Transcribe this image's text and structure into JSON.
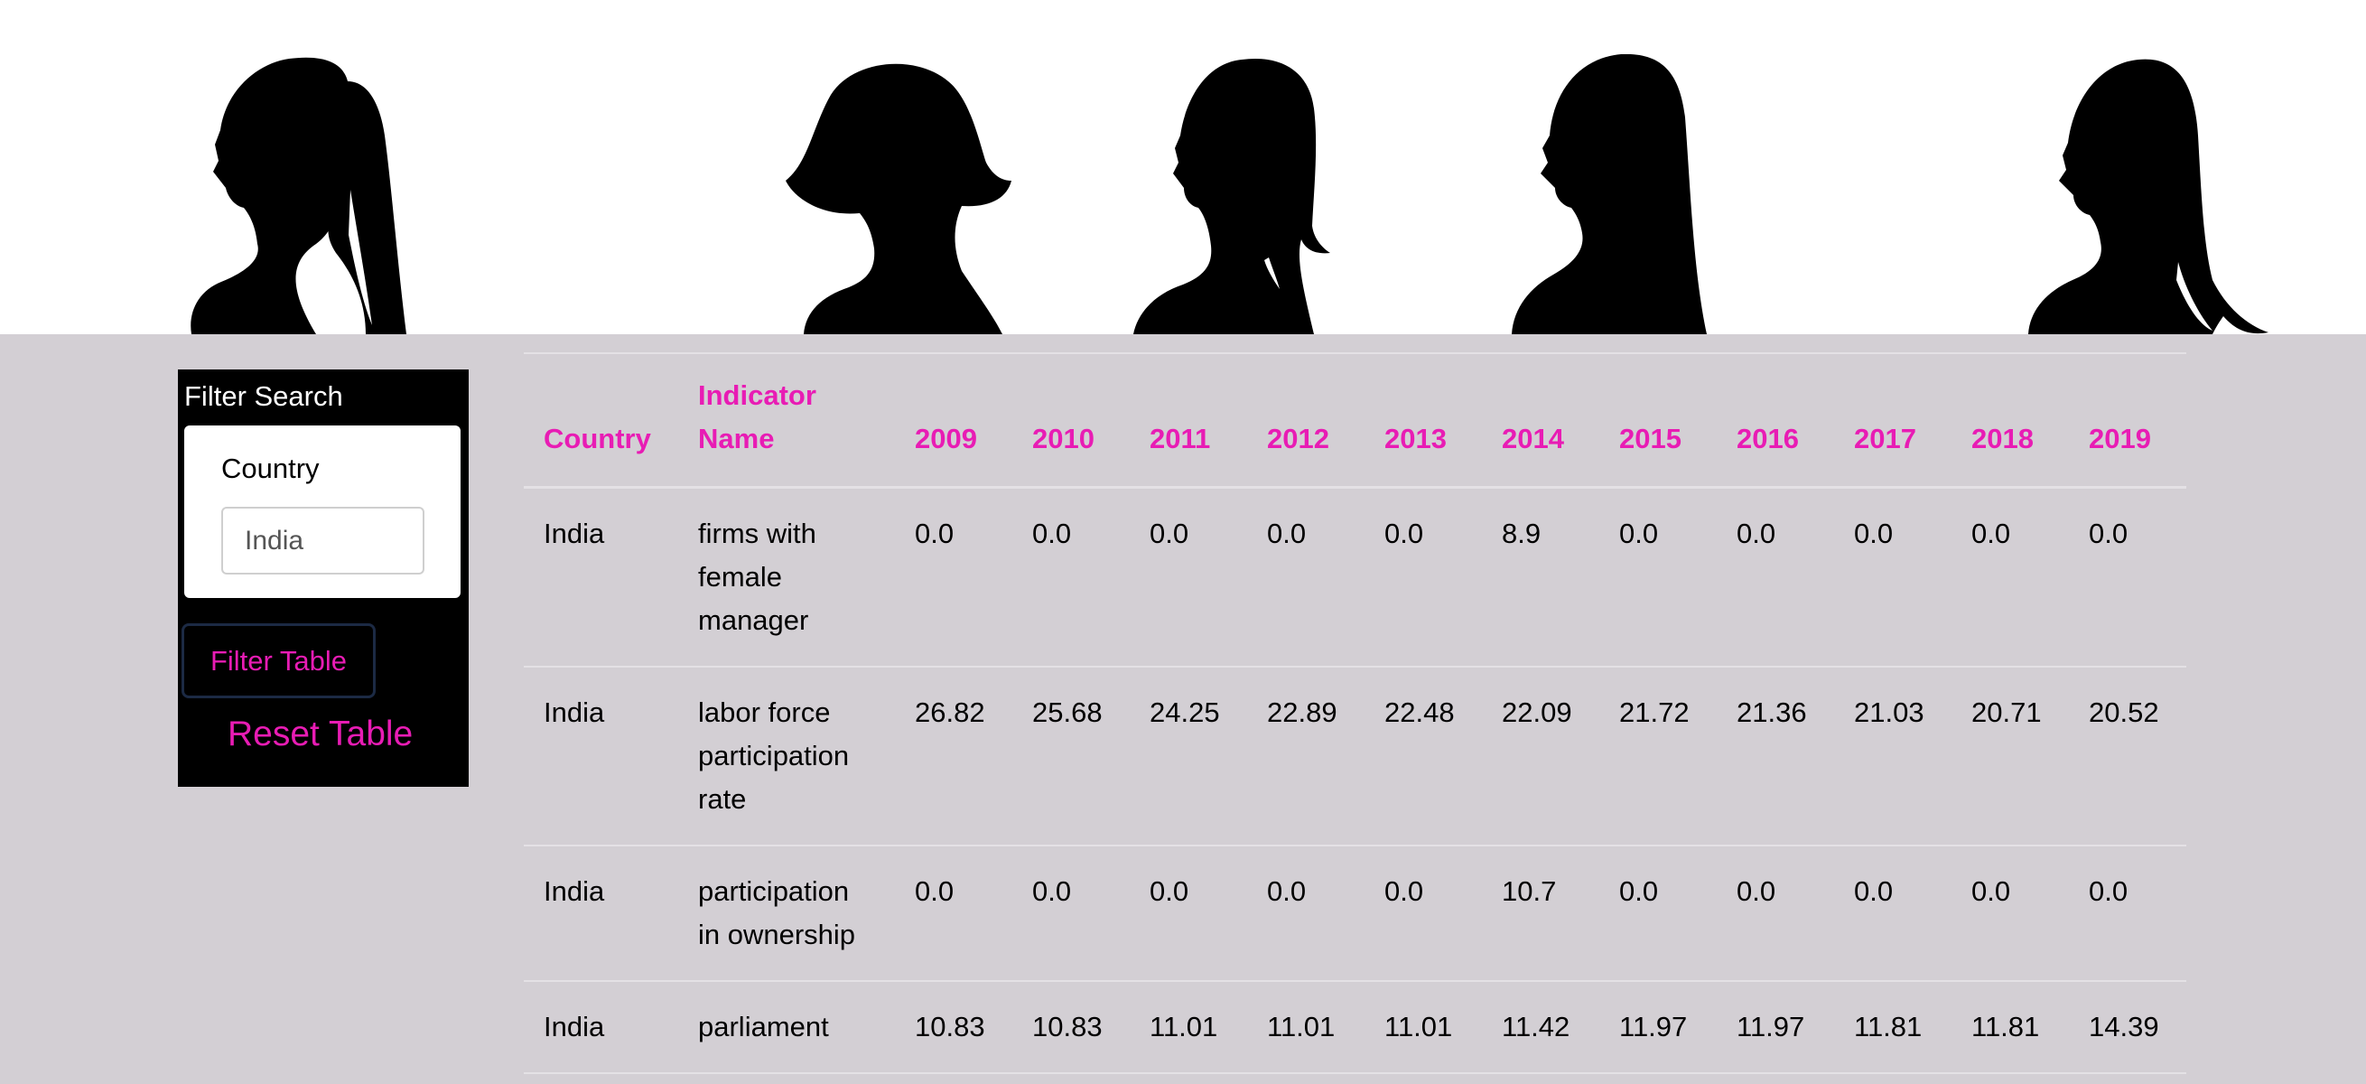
{
  "filter": {
    "title": "Filter Search",
    "country_label": "Country",
    "country_value": "India",
    "filter_button": "Filter Table",
    "reset_button": "Reset Table"
  },
  "table": {
    "headers": [
      "Country",
      "Indicator Name",
      "2009",
      "2010",
      "2011",
      "2012",
      "2013",
      "2014",
      "2015",
      "2016",
      "2017",
      "2018",
      "2019"
    ],
    "rows": [
      [
        "India",
        "firms with female manager",
        "0.0",
        "0.0",
        "0.0",
        "0.0",
        "0.0",
        "8.9",
        "0.0",
        "0.0",
        "0.0",
        "0.0",
        "0.0"
      ],
      [
        "India",
        "labor force participation rate",
        "26.82",
        "25.68",
        "24.25",
        "22.89",
        "22.48",
        "22.09",
        "21.72",
        "21.36",
        "21.03",
        "20.71",
        "20.52"
      ],
      [
        "India",
        "participation in ownership",
        "0.0",
        "0.0",
        "0.0",
        "0.0",
        "0.0",
        "10.7",
        "0.0",
        "0.0",
        "0.0",
        "0.0",
        "0.0"
      ],
      [
        "India",
        "parliament",
        "10.83",
        "10.83",
        "11.01",
        "11.01",
        "11.01",
        "11.42",
        "11.97",
        "11.97",
        "11.81",
        "11.81",
        "14.39"
      ]
    ]
  },
  "colors": {
    "accent": "#e81cb4",
    "page_bg": "#d3cfd4",
    "panel_bg": "#000000"
  }
}
